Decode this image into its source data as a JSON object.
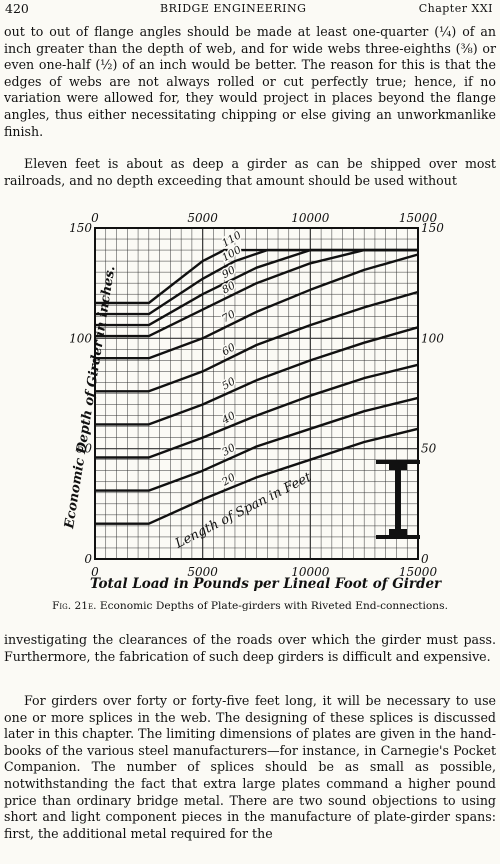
{
  "header": {
    "page_number": "420",
    "running_title": "BRIDGE ENGINEERING",
    "chapter": "Chapter XXI"
  },
  "paragraphs": {
    "p1": "out to out of flange angles should be made at least one-quarter (¼) of an inch greater than the depth of web, and for wide webs three-eighths (⅜) or even one-half (½) of an inch would be better. The reason for this is that the edges of webs are not always rolled or cut perfectly true; hence, if no variation were allowed for, they would project in places beyond the flange angles, thus either necessitating chipping or else giving an unworkmanlike finish.",
    "p2": "Eleven feet is about as deep a girder as can be shipped over most railroads, and no depth exceeding that amount should be used without",
    "p3": "investigating the clearances of the roads over which the girder must pass. Furthermore, the fabrication of such deep girders is difficult and expensive.",
    "p4": "For girders over forty or forty-five feet long, it will be necessary to use one or more splices in the web. The designing of these splices is discussed later in this chapter. The limiting dimensions of plates are given in the hand-books of the various steel manufacturers—for instance, in Carnegie's Pocket Companion. The number of splices should be as small as possible, notwithstanding the fact that extra large plates command a higher pound price than ordinary bridge metal. There are two sound objections to using short and light component pieces in the manufacture of plate-girder spans: first, the additional metal required for the"
  },
  "figure": {
    "label": "Fig. 21e.",
    "caption": "Economic Depths of Plate-girders with Riveted End-connections."
  },
  "chart_data": {
    "type": "line",
    "title": "",
    "xlabel": "Total Load in Pounds per Lineal Foot of Girder",
    "ylabel": "Economic Depth of Girder in inches.",
    "xlim": [
      0,
      15000
    ],
    "ylim": [
      0,
      150
    ],
    "x_ticks": [
      "0",
      "5000",
      "10000",
      "15000"
    ],
    "y_ticks": [
      "0",
      "50",
      "100",
      "150"
    ],
    "grid": true,
    "annotation": "Length of Span in Feet",
    "series": [
      {
        "name": "20",
        "points": [
          [
            0,
            16
          ],
          [
            2500,
            16
          ],
          [
            5000,
            27
          ],
          [
            7500,
            37
          ],
          [
            10000,
            45
          ],
          [
            12500,
            53
          ],
          [
            15000,
            59
          ]
        ]
      },
      {
        "name": "30",
        "points": [
          [
            0,
            31
          ],
          [
            2500,
            31
          ],
          [
            5000,
            40
          ],
          [
            7500,
            51
          ],
          [
            10000,
            59
          ],
          [
            12500,
            67
          ],
          [
            15000,
            73
          ]
        ]
      },
      {
        "name": "40",
        "points": [
          [
            0,
            46
          ],
          [
            2500,
            46
          ],
          [
            5000,
            55
          ],
          [
            7500,
            65
          ],
          [
            10000,
            74
          ],
          [
            12500,
            82
          ],
          [
            15000,
            88
          ]
        ]
      },
      {
        "name": "50",
        "points": [
          [
            0,
            61
          ],
          [
            2500,
            61
          ],
          [
            5000,
            70
          ],
          [
            7500,
            81
          ],
          [
            10000,
            90
          ],
          [
            12500,
            98
          ],
          [
            15000,
            105
          ]
        ]
      },
      {
        "name": "60",
        "points": [
          [
            0,
            76
          ],
          [
            2500,
            76
          ],
          [
            5000,
            85
          ],
          [
            7500,
            97
          ],
          [
            10000,
            106
          ],
          [
            12500,
            114
          ],
          [
            15000,
            121
          ]
        ]
      },
      {
        "name": "70",
        "points": [
          [
            0,
            91
          ],
          [
            2500,
            91
          ],
          [
            5000,
            100
          ],
          [
            7500,
            112
          ],
          [
            10000,
            122
          ],
          [
            12500,
            131
          ],
          [
            15000,
            138
          ]
        ]
      },
      {
        "name": "80",
        "points": [
          [
            0,
            101
          ],
          [
            2500,
            101
          ],
          [
            5000,
            113
          ],
          [
            7500,
            125
          ],
          [
            10000,
            134
          ],
          [
            12500,
            140
          ],
          [
            15000,
            140
          ]
        ]
      },
      {
        "name": "90",
        "points": [
          [
            0,
            106
          ],
          [
            2500,
            106
          ],
          [
            5000,
            120
          ],
          [
            7500,
            132
          ],
          [
            10000,
            140
          ],
          [
            15000,
            140
          ]
        ]
      },
      {
        "name": "100",
        "points": [
          [
            0,
            111
          ],
          [
            2500,
            111
          ],
          [
            5000,
            127
          ],
          [
            6500,
            135
          ],
          [
            8000,
            140
          ],
          [
            15000,
            140
          ]
        ]
      },
      {
        "name": "110",
        "points": [
          [
            0,
            116
          ],
          [
            2500,
            116
          ],
          [
            5000,
            135
          ],
          [
            6000,
            140
          ],
          [
            15000,
            140
          ]
        ]
      }
    ]
  }
}
